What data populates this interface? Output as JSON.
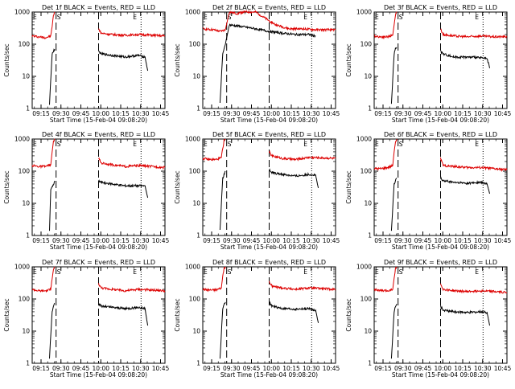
{
  "figure": {
    "xlabel": "Start Time (15-Feb-04 09:08:20)",
    "ylabel": "Counts/sec",
    "x_tick_labels": [
      "09:15",
      "09:30",
      "09:45",
      "10:00",
      "10:15",
      "10:30",
      "10:45"
    ],
    "y_tick_labels": [
      "1",
      "10",
      "100",
      "1000"
    ],
    "marker_labels": {
      "start_left": "E",
      "s": "S",
      "e": "E"
    },
    "colors": {
      "events": "#000000",
      "lld": "#dd0000"
    }
  },
  "chart_data": [
    {
      "type": "line",
      "title": "Det 1f BLACK = Events, RED = LLD",
      "x_unit": "minutes since 09:08:20",
      "xlim": [
        0,
        100
      ],
      "ylim": [
        1,
        1000
      ],
      "log_y": true,
      "markers": {
        "dashed": [
          18,
          50
        ],
        "dotted": [
          82
        ]
      },
      "series": [
        {
          "name": "LLD",
          "color": "#dd0000",
          "segments": [
            {
              "x": [
                0,
                5,
                10,
                14,
                15,
                16,
                17
              ],
              "y": [
                180,
                170,
                160,
                180,
                350,
                800,
                1000
              ]
            },
            {
              "x": [
                50,
                52,
                60,
                70,
                80,
                90,
                100
              ],
              "y": [
                300,
                220,
                200,
                190,
                200,
                190,
                180
              ]
            }
          ]
        },
        {
          "name": "Events",
          "color": "#000000",
          "segments": [
            {
              "x": [
                13,
                15,
                16,
                17
              ],
              "y": [
                1.3,
                50,
                60,
                70
              ]
            },
            {
              "x": [
                50,
                52,
                60,
                70,
                80,
                85,
                87
              ],
              "y": [
                60,
                50,
                45,
                40,
                45,
                40,
                15
              ]
            }
          ]
        }
      ]
    },
    {
      "type": "line",
      "title": "Det 2f BLACK = Events, RED = LLD",
      "x_unit": "minutes since 09:08:20",
      "xlim": [
        0,
        100
      ],
      "ylim": [
        1,
        1000
      ],
      "log_y": true,
      "markers": {
        "dashed": [
          18,
          50
        ],
        "dotted": [
          82
        ]
      },
      "series": [
        {
          "name": "LLD",
          "color": "#dd0000",
          "segments": [
            {
              "x": [
                0,
                8,
                13,
                17,
                20,
                26,
                30,
                40,
                48,
                55,
                65,
                75,
                85,
                100
              ],
              "y": [
                300,
                280,
                250,
                280,
                1000,
                900,
                1000,
                1000,
                600,
                400,
                300,
                300,
                280,
                280
              ]
            }
          ]
        },
        {
          "name": "Events",
          "color": "#000000",
          "segments": [
            {
              "x": [
                13,
                15,
                17,
                20,
                30,
                40,
                50,
                60,
                70,
                80,
                85
              ],
              "y": [
                1.5,
                50,
                100,
                400,
                350,
                300,
                250,
                220,
                200,
                200,
                180
              ]
            }
          ]
        }
      ]
    },
    {
      "type": "line",
      "title": "Det 3f BLACK = Events, RED = LLD",
      "x_unit": "minutes since 09:08:20",
      "xlim": [
        0,
        100
      ],
      "ylim": [
        1,
        1000
      ],
      "log_y": true,
      "markers": {
        "dashed": [
          18,
          50
        ],
        "dotted": [
          82
        ]
      },
      "series": [
        {
          "name": "LLD",
          "color": "#dd0000",
          "segments": [
            {
              "x": [
                0,
                5,
                10,
                14,
                15,
                16,
                17
              ],
              "y": [
                180,
                170,
                170,
                190,
                400,
                800,
                1000
              ]
            },
            {
              "x": [
                50,
                52,
                60,
                70,
                80,
                90,
                100
              ],
              "y": [
                300,
                200,
                180,
                170,
                180,
                170,
                170
              ]
            }
          ]
        },
        {
          "name": "Events",
          "color": "#000000",
          "segments": [
            {
              "x": [
                13,
                15,
                16,
                17
              ],
              "y": [
                1.4,
                50,
                70,
                80
              ]
            },
            {
              "x": [
                50,
                52,
                60,
                70,
                80,
                85,
                87
              ],
              "y": [
                60,
                50,
                40,
                40,
                38,
                35,
                18
              ]
            }
          ]
        }
      ]
    },
    {
      "type": "line",
      "title": "Det 4f BLACK = Events, RED = LLD",
      "x_unit": "minutes since 09:08:20",
      "xlim": [
        0,
        100
      ],
      "ylim": [
        1,
        1000
      ],
      "log_y": true,
      "markers": {
        "dashed": [
          18,
          50
        ],
        "dotted": [
          82
        ]
      },
      "series": [
        {
          "name": "LLD",
          "color": "#dd0000",
          "segments": [
            {
              "x": [
                0,
                5,
                10,
                14,
                15,
                16,
                17
              ],
              "y": [
                150,
                140,
                140,
                160,
                400,
                800,
                1000
              ]
            },
            {
              "x": [
                50,
                52,
                60,
                70,
                80,
                90,
                100
              ],
              "y": [
                250,
                180,
                160,
                140,
                150,
                140,
                130
              ]
            }
          ]
        },
        {
          "name": "Events",
          "color": "#000000",
          "segments": [
            {
              "x": [
                13,
                14,
                16,
                17
              ],
              "y": [
                1.4,
                25,
                40,
                50
              ]
            },
            {
              "x": [
                50,
                52,
                60,
                70,
                80,
                85,
                87
              ],
              "y": [
                50,
                45,
                40,
                35,
                35,
                35,
                15
              ]
            }
          ]
        }
      ]
    },
    {
      "type": "line",
      "title": "Det 5f BLACK = Events, RED = LLD",
      "x_unit": "minutes since 09:08:20",
      "xlim": [
        0,
        100
      ],
      "ylim": [
        1,
        1000
      ],
      "log_y": true,
      "markers": {
        "dashed": [
          18,
          50
        ],
        "dotted": [
          82
        ]
      },
      "series": [
        {
          "name": "LLD",
          "color": "#dd0000",
          "segments": [
            {
              "x": [
                0,
                5,
                10,
                14,
                15,
                16,
                17
              ],
              "y": [
                250,
                230,
                230,
                260,
                500,
                900,
                1000
              ]
            },
            {
              "x": [
                50,
                52,
                60,
                70,
                80,
                90,
                100
              ],
              "y": [
                400,
                300,
                250,
                230,
                270,
                260,
                250
              ]
            }
          ]
        },
        {
          "name": "Events",
          "color": "#000000",
          "segments": [
            {
              "x": [
                13,
                15,
                16,
                17
              ],
              "y": [
                1.5,
                60,
                80,
                100
              ]
            },
            {
              "x": [
                50,
                52,
                60,
                70,
                80,
                85,
                87
              ],
              "y": [
                110,
                90,
                80,
                70,
                80,
                75,
                30
              ]
            }
          ]
        }
      ]
    },
    {
      "type": "line",
      "title": "Det 6f BLACK = Events, RED = LLD",
      "x_unit": "minutes since 09:08:20",
      "xlim": [
        0,
        100
      ],
      "ylim": [
        1,
        1000
      ],
      "log_y": true,
      "markers": {
        "dashed": [
          18,
          50
        ],
        "dotted": [
          82
        ]
      },
      "series": [
        {
          "name": "LLD",
          "color": "#dd0000",
          "segments": [
            {
              "x": [
                0,
                5,
                10,
                14,
                15,
                16,
                17
              ],
              "y": [
                120,
                120,
                130,
                150,
                400,
                800,
                1000
              ]
            },
            {
              "x": [
                50,
                52,
                60,
                70,
                80,
                90,
                100
              ],
              "y": [
                250,
                150,
                140,
                130,
                130,
                120,
                110
              ]
            }
          ]
        },
        {
          "name": "Events",
          "color": "#000000",
          "segments": [
            {
              "x": [
                13,
                15,
                16,
                17
              ],
              "y": [
                1.4,
                40,
                50,
                60
              ]
            },
            {
              "x": [
                50,
                52,
                60,
                70,
                80,
                85,
                87
              ],
              "y": [
                60,
                50,
                45,
                42,
                45,
                40,
                20
              ]
            }
          ]
        }
      ]
    },
    {
      "type": "line",
      "title": "Det 7f BLACK = Events, RED = LLD",
      "x_unit": "minutes since 09:08:20",
      "xlim": [
        0,
        100
      ],
      "ylim": [
        1,
        1000
      ],
      "log_y": true,
      "markers": {
        "dashed": [
          18,
          50
        ],
        "dotted": [
          82
        ]
      },
      "series": [
        {
          "name": "LLD",
          "color": "#dd0000",
          "segments": [
            {
              "x": [
                0,
                5,
                10,
                14,
                15,
                16,
                17
              ],
              "y": [
                200,
                180,
                180,
                200,
                450,
                850,
                1000
              ]
            },
            {
              "x": [
                50,
                52,
                60,
                70,
                80,
                90,
                100
              ],
              "y": [
                300,
                220,
                200,
                180,
                200,
                190,
                180
              ]
            }
          ]
        },
        {
          "name": "Events",
          "color": "#000000",
          "segments": [
            {
              "x": [
                13,
                15,
                16,
                17
              ],
              "y": [
                1.4,
                40,
                60,
                70
              ]
            },
            {
              "x": [
                50,
                52,
                60,
                70,
                80,
                85,
                87
              ],
              "y": [
                70,
                60,
                55,
                50,
                55,
                50,
                15
              ]
            }
          ]
        }
      ]
    },
    {
      "type": "line",
      "title": "Det 8f BLACK = Events, RED = LLD",
      "x_unit": "minutes since 09:08:20",
      "xlim": [
        0,
        100
      ],
      "ylim": [
        1,
        1000
      ],
      "log_y": true,
      "markers": {
        "dashed": [
          18,
          50
        ],
        "dotted": [
          82
        ]
      },
      "series": [
        {
          "name": "LLD",
          "color": "#dd0000",
          "segments": [
            {
              "x": [
                0,
                5,
                10,
                14,
                15,
                16,
                17
              ],
              "y": [
                200,
                190,
                190,
                220,
                500,
                900,
                1000
              ]
            },
            {
              "x": [
                50,
                52,
                60,
                70,
                80,
                90,
                100
              ],
              "y": [
                350,
                250,
                220,
                200,
                220,
                210,
                200
              ]
            }
          ]
        },
        {
          "name": "Events",
          "color": "#000000",
          "segments": [
            {
              "x": [
                13,
                15,
                16,
                17
              ],
              "y": [
                1.4,
                50,
                70,
                80
              ]
            },
            {
              "x": [
                50,
                52,
                60,
                70,
                80,
                85,
                87
              ],
              "y": [
                80,
                60,
                50,
                48,
                50,
                45,
                18
              ]
            }
          ]
        }
      ]
    },
    {
      "type": "line",
      "title": "Det 9f BLACK = Events, RED = LLD",
      "x_unit": "minutes since 09:08:20",
      "xlim": [
        0,
        100
      ],
      "ylim": [
        1,
        1000
      ],
      "log_y": true,
      "markers": {
        "dashed": [
          18,
          50
        ],
        "dotted": [
          82
        ]
      },
      "series": [
        {
          "name": "LLD",
          "color": "#dd0000",
          "segments": [
            {
              "x": [
                0,
                5,
                10,
                14,
                15,
                16,
                17
              ],
              "y": [
                200,
                180,
                180,
                200,
                450,
                850,
                1000
              ]
            },
            {
              "x": [
                50,
                52,
                60,
                70,
                80,
                90,
                100
              ],
              "y": [
                300,
                200,
                180,
                170,
                180,
                170,
                160
              ]
            }
          ]
        },
        {
          "name": "Events",
          "color": "#000000",
          "segments": [
            {
              "x": [
                13,
                15,
                16,
                17
              ],
              "y": [
                1.4,
                40,
                60,
                70
              ]
            },
            {
              "x": [
                50,
                52,
                60,
                70,
                80,
                85,
                87
              ],
              "y": [
                60,
                45,
                40,
                38,
                40,
                38,
                15
              ]
            }
          ]
        }
      ]
    }
  ]
}
